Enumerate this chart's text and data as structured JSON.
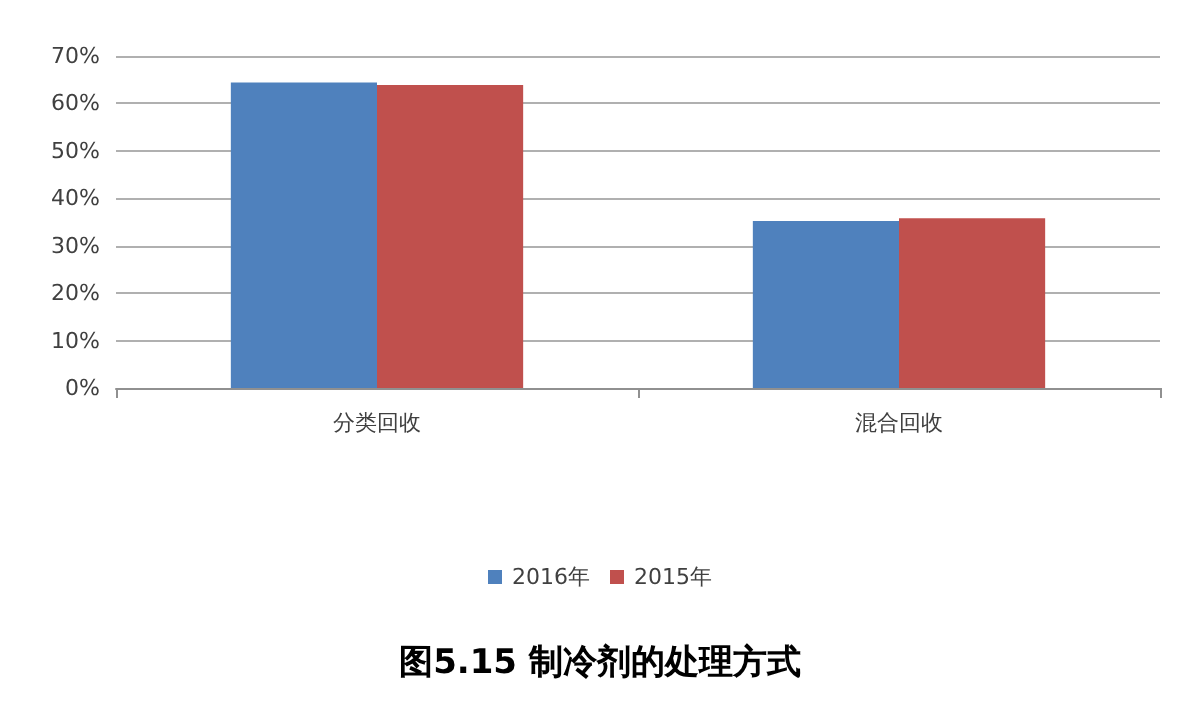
{
  "chart_data": {
    "type": "bar",
    "title": "图5.15 制冷剂的处理方式",
    "categories": [
      "分类回收",
      "混合回收"
    ],
    "series": [
      {
        "name": "2016年",
        "color": "#4f81bd",
        "values": [
          64.4,
          35.2
        ]
      },
      {
        "name": "2015年",
        "color": "#c0504d",
        "values": [
          63.9,
          35.8
        ]
      }
    ],
    "ylim": [
      0,
      70
    ],
    "yticks": [
      {
        "value": 0,
        "label": "0%"
      },
      {
        "value": 10,
        "label": "10%"
      },
      {
        "value": 20,
        "label": "20%"
      },
      {
        "value": 30,
        "label": "30%"
      },
      {
        "value": 40,
        "label": "40%"
      },
      {
        "value": 50,
        "label": "50%"
      },
      {
        "value": 60,
        "label": "60%"
      },
      {
        "value": 70,
        "label": "70%"
      }
    ],
    "grid": "y",
    "legend": "bottom"
  }
}
